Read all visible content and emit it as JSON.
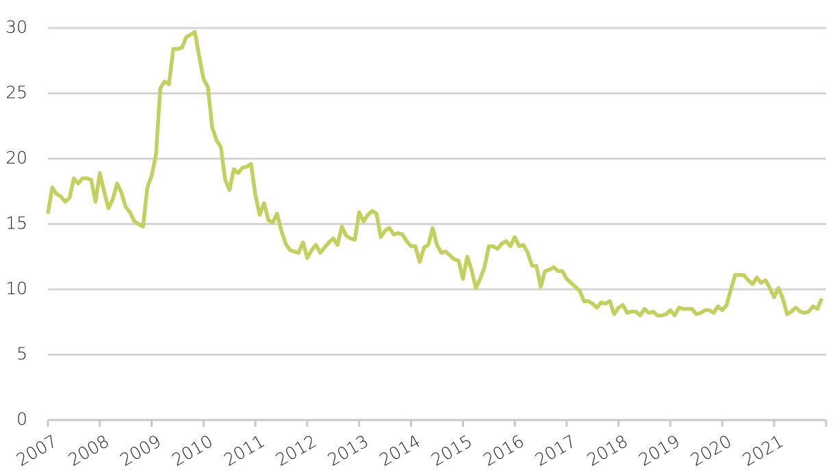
{
  "chart_data": {
    "type": "line",
    "categories": [
      "2007",
      null,
      null,
      null,
      null,
      null,
      null,
      null,
      null,
      null,
      null,
      null,
      "2008",
      null,
      null,
      null,
      null,
      null,
      null,
      null,
      null,
      null,
      null,
      null,
      "2009",
      null,
      null,
      null,
      null,
      null,
      null,
      null,
      null,
      null,
      null,
      null,
      "2010",
      null,
      null,
      null,
      null,
      null,
      null,
      null,
      null,
      null,
      null,
      null,
      "2011",
      null,
      null,
      null,
      null,
      null,
      null,
      null,
      null,
      null,
      null,
      null,
      "2012",
      null,
      null,
      null,
      null,
      null,
      null,
      null,
      null,
      null,
      null,
      null,
      "2013",
      null,
      null,
      null,
      null,
      null,
      null,
      null,
      null,
      null,
      null,
      null,
      "2014",
      null,
      null,
      null,
      null,
      null,
      null,
      null,
      null,
      null,
      null,
      null,
      "2015",
      null,
      null,
      null,
      null,
      null,
      null,
      null,
      null,
      null,
      null,
      null,
      "2016",
      null,
      null,
      null,
      null,
      null,
      null,
      null,
      null,
      null,
      null,
      null,
      "2017",
      null,
      null,
      null,
      null,
      null,
      null,
      null,
      null,
      null,
      null,
      null,
      "2018",
      null,
      null,
      null,
      null,
      null,
      null,
      null,
      null,
      null,
      null,
      null,
      "2019",
      null,
      null,
      null,
      null,
      null,
      null,
      null,
      null,
      null,
      null,
      null,
      "2020",
      null,
      null,
      null,
      null,
      null,
      null,
      null,
      null,
      null,
      null,
      null,
      "2021",
      null,
      null,
      null,
      null,
      null,
      null,
      null,
      null,
      null,
      null,
      null
    ],
    "values": [
      15.8,
      17.8,
      17.3,
      17.1,
      16.7,
      17.0,
      18.5,
      18.1,
      18.5,
      18.5,
      18.4,
      16.7,
      18.9,
      17.5,
      16.2,
      16.9,
      18.1,
      17.4,
      16.3,
      15.9,
      15.2,
      15.0,
      14.8,
      17.8,
      18.7,
      20.3,
      25.4,
      25.9,
      25.7,
      28.4,
      28.4,
      28.5,
      29.3,
      29.5,
      29.7,
      27.8,
      26.1,
      25.5,
      22.4,
      21.4,
      20.9,
      18.4,
      17.6,
      19.2,
      18.9,
      19.3,
      19.4,
      19.6,
      17.2,
      15.7,
      16.6,
      15.3,
      15.1,
      15.8,
      14.5,
      13.5,
      13.0,
      12.9,
      12.8,
      13.6,
      12.4,
      13.0,
      13.4,
      12.8,
      13.2,
      13.6,
      13.9,
      13.4,
      14.8,
      14.1,
      13.9,
      13.8,
      15.9,
      15.2,
      15.7,
      16.0,
      15.8,
      14.0,
      14.5,
      14.7,
      14.2,
      14.3,
      14.2,
      13.7,
      13.3,
      13.3,
      12.1,
      13.2,
      13.4,
      14.7,
      13.4,
      12.8,
      12.9,
      12.6,
      12.3,
      12.2,
      10.8,
      12.5,
      11.5,
      10.1,
      10.8,
      11.7,
      13.3,
      13.3,
      13.1,
      13.5,
      13.7,
      13.3,
      14.0,
      13.3,
      13.4,
      12.8,
      11.8,
      11.8,
      10.2,
      11.4,
      11.5,
      11.7,
      11.4,
      11.4,
      10.8,
      10.5,
      10.2,
      9.9,
      9.1,
      9.1,
      8.9,
      8.6,
      9.0,
      8.9,
      9.1,
      8.1,
      8.6,
      8.8,
      8.2,
      8.3,
      8.3,
      8.0,
      8.5,
      8.2,
      8.3,
      8.0,
      8.0,
      8.1,
      8.4,
      8.0,
      8.6,
      8.5,
      8.5,
      8.5,
      8.1,
      8.2,
      8.4,
      8.4,
      8.2,
      8.7,
      8.4,
      8.8,
      10.0,
      11.1,
      11.1,
      11.1,
      10.7,
      10.4,
      10.9,
      10.5,
      10.7,
      10.1,
      9.4,
      10.1,
      9.3,
      8.1,
      8.3,
      8.6,
      8.3,
      8.2,
      8.3,
      8.7,
      8.5,
      9.3
    ],
    "color": "#c3cf5e",
    "ylim": [
      0,
      30
    ],
    "yticks": [
      0,
      5,
      10,
      15,
      20,
      25,
      30
    ],
    "grid": true
  }
}
